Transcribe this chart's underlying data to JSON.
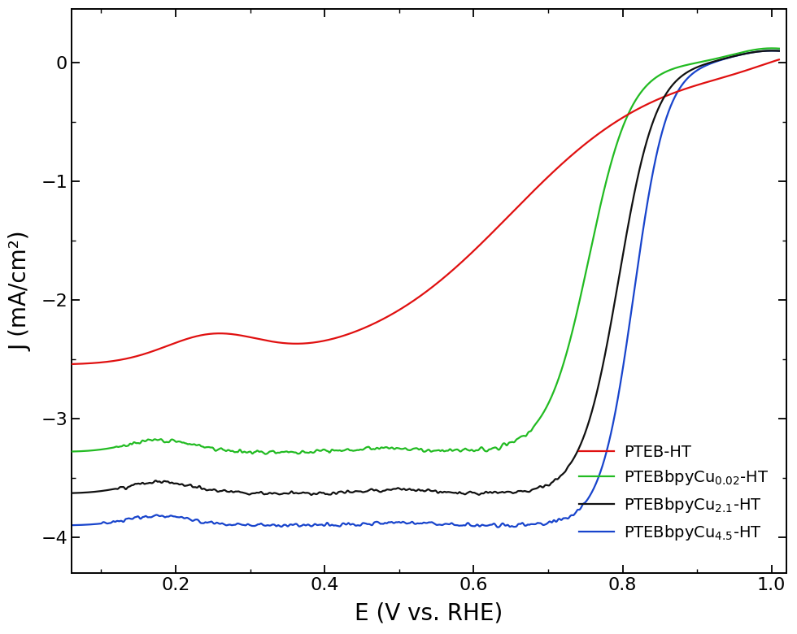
{
  "xlim": [
    0.06,
    1.02
  ],
  "ylim": [
    -4.3,
    0.45
  ],
  "xlabel": "E (V vs. RHE)",
  "ylabel": "J (mA/cm²)",
  "yticks": [
    -4,
    -3,
    -2,
    -1,
    0
  ],
  "xticks": [
    0.2,
    0.4,
    0.6,
    0.8,
    1.0
  ],
  "colors": [
    "#e01010",
    "#22bb22",
    "#111111",
    "#1844cc"
  ],
  "linewidth": 1.6,
  "figsize": [
    9.8,
    7.8
  ],
  "dpi": 100
}
